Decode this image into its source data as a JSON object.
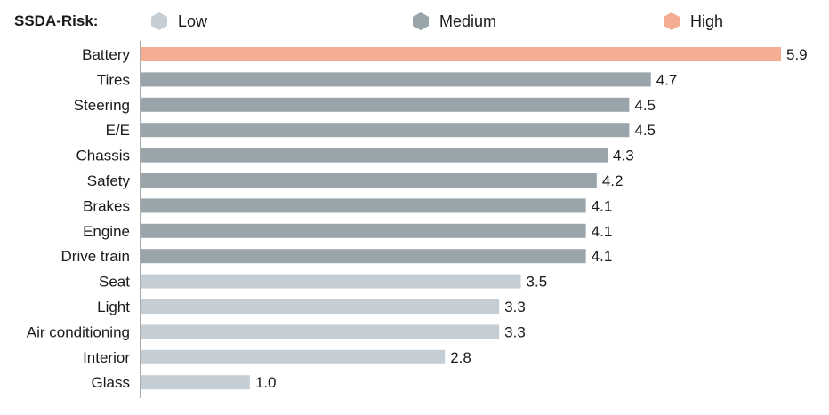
{
  "legend": {
    "title": "SSDA-Risk:",
    "items": [
      {
        "label": "Low",
        "color": "#c5ced5",
        "icon": "hexagon-icon"
      },
      {
        "label": "Medium",
        "color": "#9aa4ab",
        "icon": "hexagon-icon"
      },
      {
        "label": "High",
        "color": "#f4ad92",
        "icon": "hexagon-icon"
      }
    ]
  },
  "chart_data": {
    "type": "bar",
    "orientation": "horizontal",
    "title": "",
    "xlabel": "",
    "ylabel": "",
    "xlim": [
      0,
      6.0
    ],
    "grid": false,
    "legend_position": "top",
    "categories": [
      "Battery",
      "Tires",
      "Steering",
      "E/E",
      "Chassis",
      "Safety",
      "Brakes",
      "Engine",
      "Drive train",
      "Seat",
      "Light",
      "Air conditioning",
      "Interior",
      "Glass"
    ],
    "values": [
      5.9,
      4.7,
      4.5,
      4.5,
      4.3,
      4.2,
      4.1,
      4.1,
      4.1,
      3.5,
      3.3,
      3.3,
      2.8,
      1.0
    ],
    "value_labels": [
      "5.9",
      "4.7",
      "4.5",
      "4.5",
      "4.3",
      "4.2",
      "4.1",
      "4.1",
      "4.1",
      "3.5",
      "3.3",
      "3.3",
      "2.8",
      "1.0"
    ],
    "risk": [
      "High",
      "Medium",
      "Medium",
      "Medium",
      "Medium",
      "Medium",
      "Medium",
      "Medium",
      "Medium",
      "Low",
      "Low",
      "Low",
      "Low",
      "Low"
    ]
  }
}
